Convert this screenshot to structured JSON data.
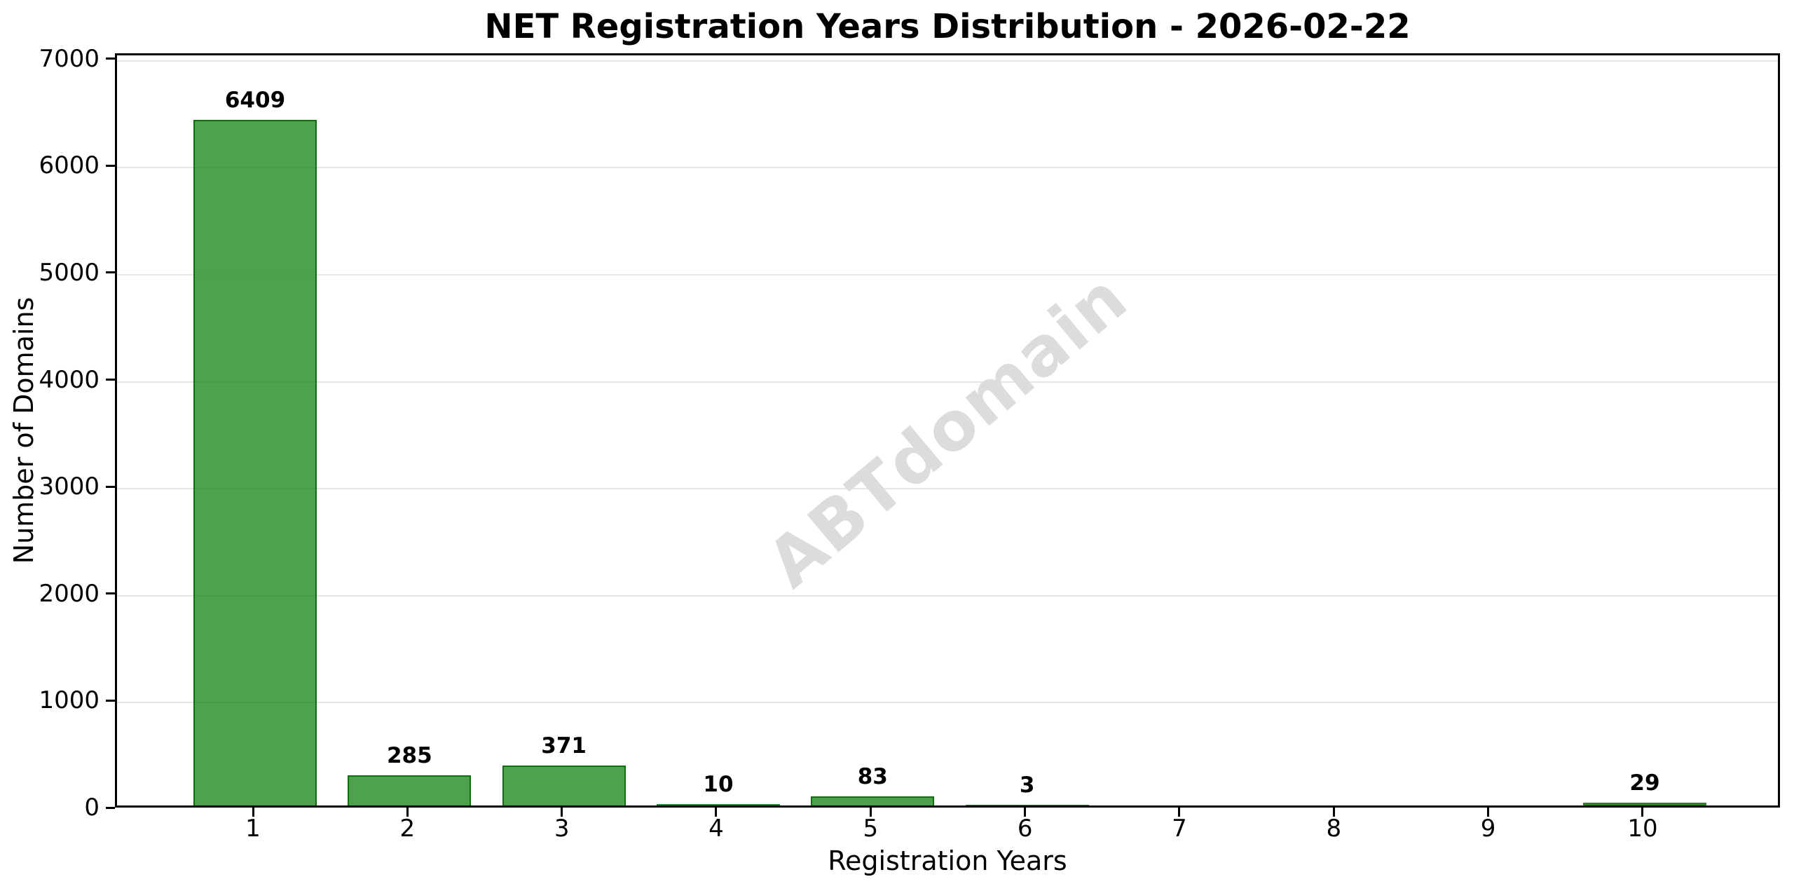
{
  "chart_data": {
    "type": "bar",
    "title": "NET Registration Years Distribution - 2026-02-22",
    "xlabel": "Registration Years",
    "ylabel": "Number of Domains",
    "categories": [
      "1",
      "2",
      "3",
      "4",
      "5",
      "6",
      "7",
      "8",
      "9",
      "10"
    ],
    "values": [
      6409,
      285,
      371,
      10,
      83,
      3,
      0,
      0,
      0,
      29
    ],
    "bar_labels": [
      "6409",
      "285",
      "371",
      "10",
      "83",
      "3",
      "",
      "",
      "",
      "29"
    ],
    "ylim": [
      0,
      7050
    ],
    "yticks": [
      0,
      1000,
      2000,
      3000,
      4000,
      5000,
      6000,
      7000
    ],
    "grid": "horizontal",
    "legend": "none",
    "watermark": "ABTdomain",
    "colors": {
      "bar_fill": "rgba(34,139,34,0.8)",
      "bar_edge": "rgba(0,100,0,0.82)",
      "grid_line": "#e6e6e6",
      "spine": "#000000",
      "watermark": "#dcdcdc",
      "background": "#ffffff"
    }
  }
}
